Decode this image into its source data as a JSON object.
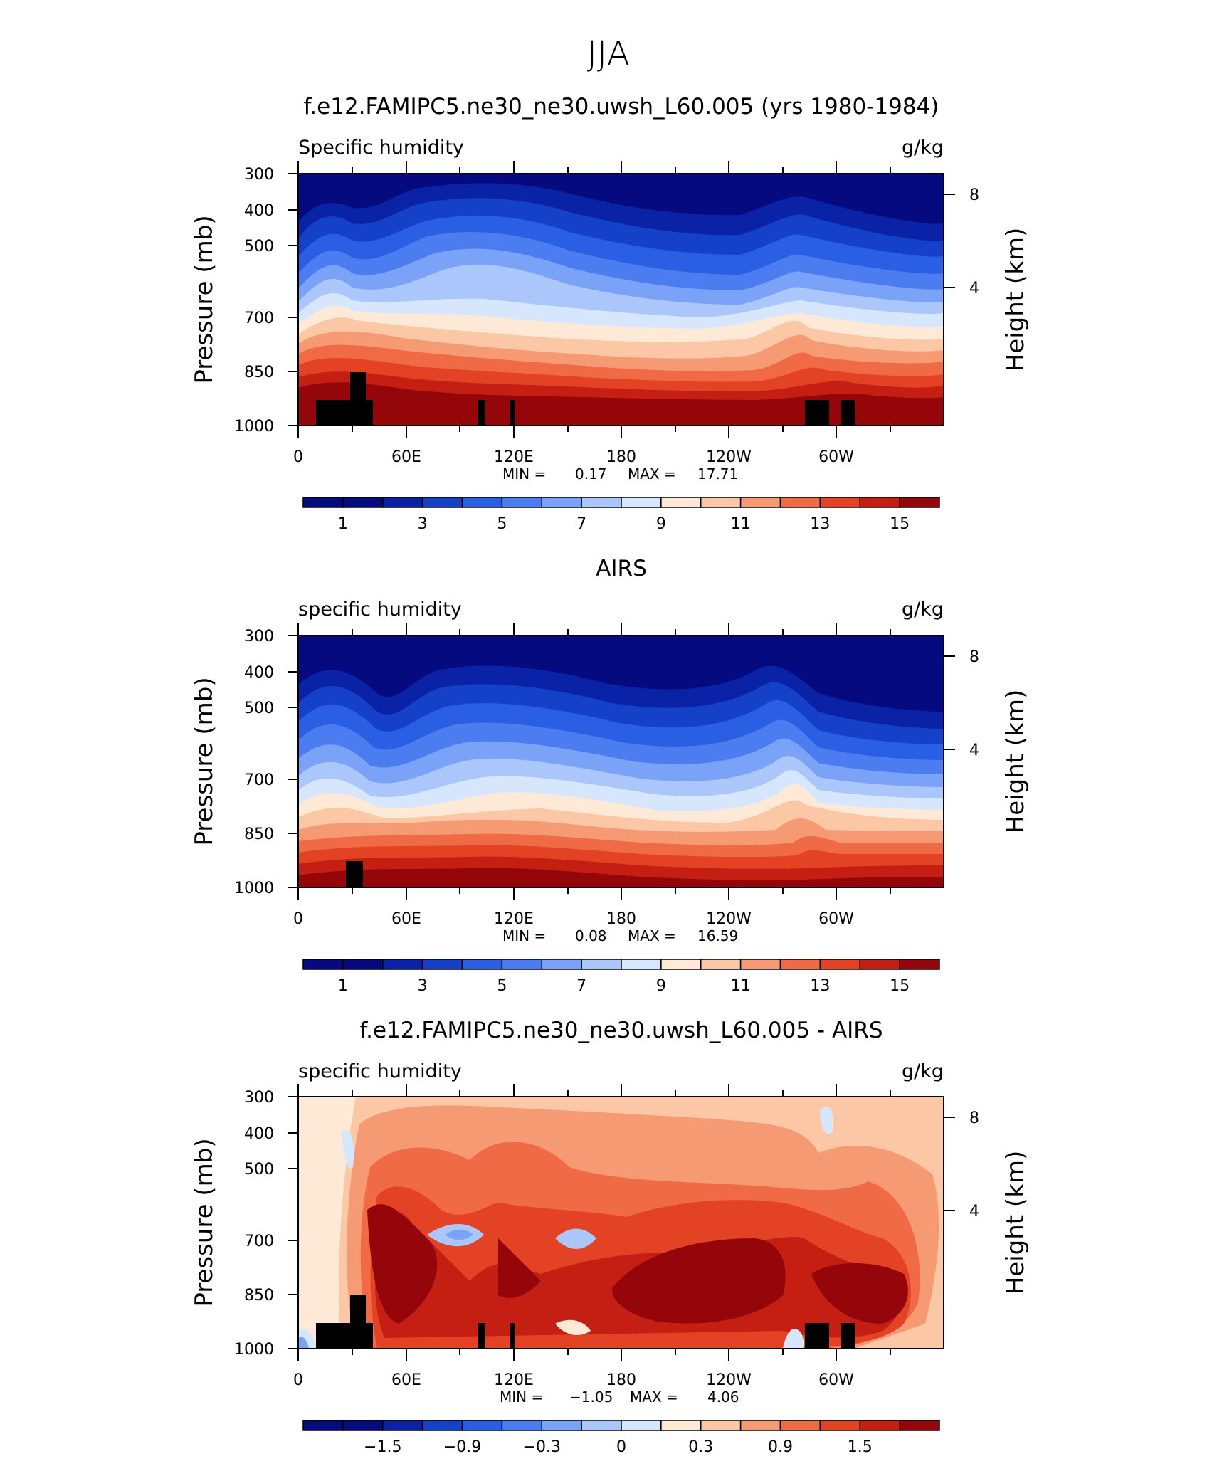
{
  "figure_title": "JJA",
  "chart_data": [
    {
      "type": "heatmap",
      "title": "f.e12.FAMIPC5.ne30_ne30.uwsh_L60.005 (yrs 1980-1984)",
      "left_label": "Specific humidity",
      "right_label": "g/kg",
      "ylabel": "Pressure (mb)",
      "ylabel_right": "Height (km)",
      "x_ticks": [
        "0",
        "60E",
        "120E",
        "180",
        "120W",
        "60W"
      ],
      "y_ticks": [
        "300",
        "400",
        "500",
        "700",
        "850",
        "1000"
      ],
      "right_ticks": [
        "8",
        "4"
      ],
      "min_label": "MIN =",
      "min_value": "0.17",
      "max_label": "MAX =",
      "max_value": "17.71",
      "colorbar_labels": [
        "1",
        "3",
        "5",
        "7",
        "9",
        "11",
        "13",
        "15"
      ],
      "ylim": [
        1000,
        300
      ],
      "xlim": [
        0,
        360
      ]
    },
    {
      "type": "heatmap",
      "title": "AIRS",
      "left_label": "specific humidity",
      "right_label": "g/kg",
      "ylabel": "Pressure (mb)",
      "ylabel_right": "Height (km)",
      "x_ticks": [
        "0",
        "60E",
        "120E",
        "180",
        "120W",
        "60W"
      ],
      "y_ticks": [
        "300",
        "400",
        "500",
        "700",
        "850",
        "1000"
      ],
      "right_ticks": [
        "8",
        "4"
      ],
      "min_label": "MIN =",
      "min_value": "0.08",
      "max_label": "MAX =",
      "max_value": "16.59",
      "colorbar_labels": [
        "1",
        "3",
        "5",
        "7",
        "9",
        "11",
        "13",
        "15"
      ],
      "ylim": [
        1000,
        300
      ],
      "xlim": [
        0,
        360
      ]
    },
    {
      "type": "heatmap",
      "title": "f.e12.FAMIPC5.ne30_ne30.uwsh_L60.005 - AIRS",
      "left_label": "specific humidity",
      "right_label": "g/kg",
      "ylabel": "Pressure (mb)",
      "ylabel_right": "Height (km)",
      "x_ticks": [
        "0",
        "60E",
        "120E",
        "180",
        "120W",
        "60W"
      ],
      "y_ticks": [
        "300",
        "400",
        "500",
        "700",
        "850",
        "1000"
      ],
      "right_ticks": [
        "8",
        "4"
      ],
      "min_label": "MIN =",
      "min_value": "−1.05",
      "max_label": "MAX =",
      "max_value": "4.06",
      "colorbar_labels": [
        "−1.5",
        "−0.9",
        "−0.3",
        "0",
        "0.3",
        "0.9",
        "1.5"
      ],
      "ylim": [
        1000,
        300
      ],
      "xlim": [
        0,
        360
      ]
    }
  ],
  "palette": [
    "#050b7e",
    "#0a22a6",
    "#1541c9",
    "#2a5ee3",
    "#4b7cf0",
    "#7aa2f6",
    "#aac6fb",
    "#d6e6fd",
    "#fde9d6",
    "#fbc7a5",
    "#f69a73",
    "#ef6a45",
    "#e34324",
    "#c41f12",
    "#94060a"
  ]
}
